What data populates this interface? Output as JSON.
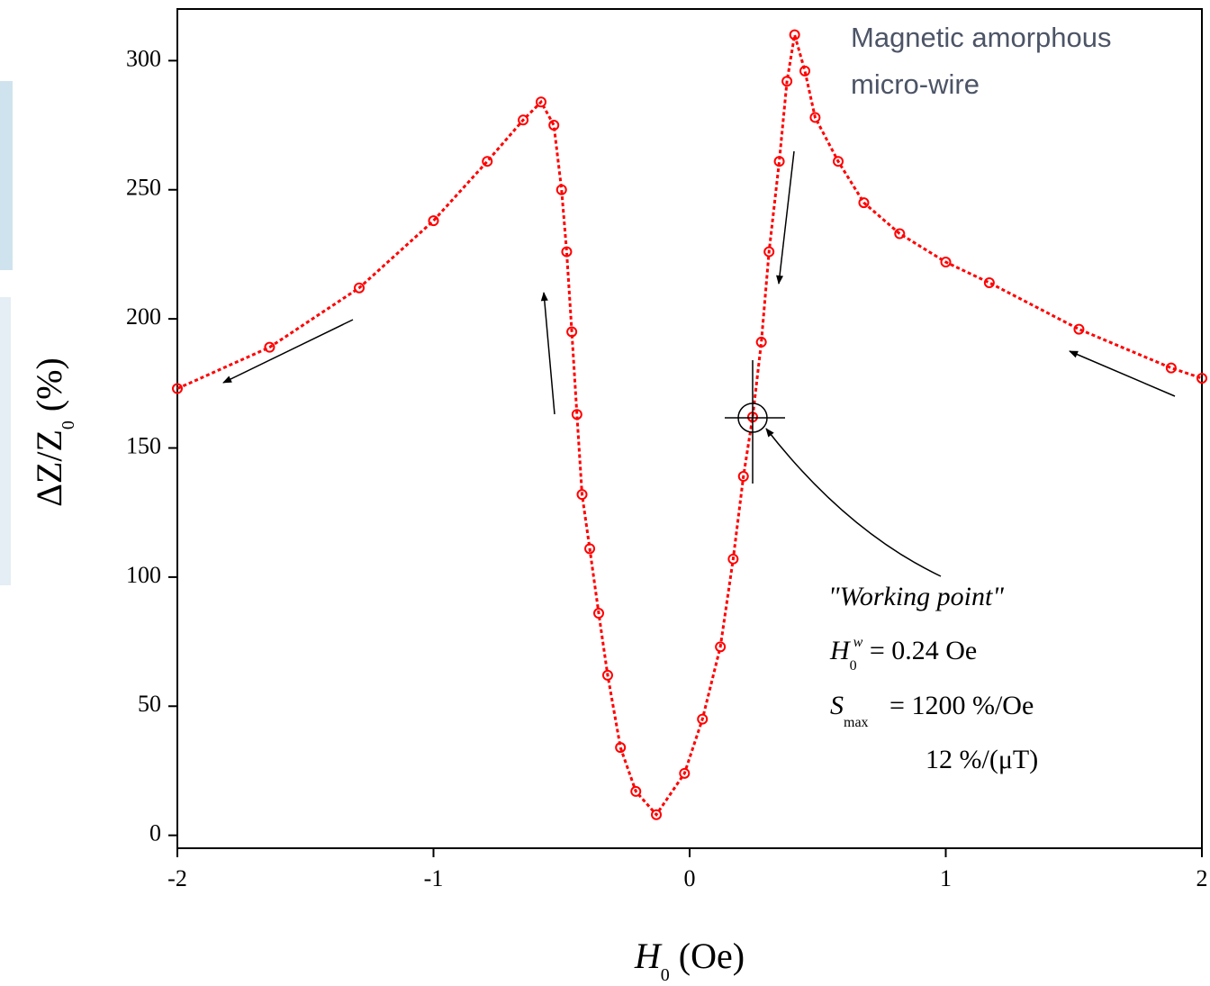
{
  "chart_data": {
    "type": "scatter",
    "note": [
      "Magnetic amorphous",
      "micro-wire"
    ],
    "xlabel": [
      "H",
      "0",
      " (Oe)"
    ],
    "ylabel": [
      "ΔZ/Z",
      "0",
      " (%)"
    ],
    "annotations": {
      "working_point": "\"Working point\"",
      "h_w": [
        "H",
        "0",
        "w",
        " = 0.24 Oe"
      ],
      "s_max": [
        "S",
        "max",
        " = 1200 %/Oe"
      ],
      "s_max_2": "12 %/(μT)"
    },
    "xlim": [
      -2,
      2
    ],
    "ylim": [
      -5,
      320
    ],
    "xticks": [
      -2,
      -1,
      0,
      1,
      2
    ],
    "yticks": [
      0,
      50,
      100,
      150,
      200,
      250,
      300
    ],
    "color": "#ff0000",
    "x": [
      -2,
      -1.64,
      -1.29,
      -1.0,
      -0.79,
      -0.65,
      -0.58,
      -0.53,
      -0.5,
      -0.48,
      -0.46,
      -0.44,
      -0.42,
      -0.39,
      -0.355,
      -0.32,
      -0.27,
      -0.21,
      -0.13,
      -0.02,
      0.05,
      0.12,
      0.17,
      0.21,
      0.246,
      0.28,
      0.31,
      0.35,
      0.38,
      0.41,
      0.45,
      0.49,
      0.58,
      0.68,
      0.82,
      1.0,
      1.17,
      1.52,
      1.88,
      2.0
    ],
    "values": [
      173,
      189,
      212,
      238,
      261,
      277,
      284,
      275,
      250,
      226,
      195,
      163,
      132,
      111,
      86,
      62,
      34,
      17,
      8,
      24,
      45,
      73,
      107,
      139,
      162,
      191,
      226,
      261,
      292,
      310,
      296,
      278,
      261,
      245,
      233,
      222,
      214,
      196,
      181,
      177
    ]
  }
}
